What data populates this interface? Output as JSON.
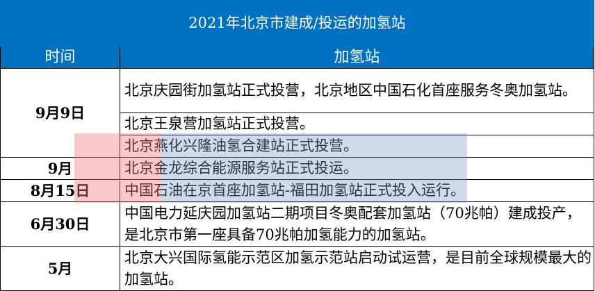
{
  "title": "2021年北京市建成/投运的加氢站",
  "headers": {
    "time": "时间",
    "station": "加氢站"
  },
  "rows": [
    {
      "time": "9月9日",
      "items": [
        "北京庆园街加氢站正式投营，北京地区中国石化首座服务冬奥加氢站。",
        "北京王泉营加氢站正式投营。",
        "北京燕化兴隆油氢合建站正式投营。"
      ]
    },
    {
      "time": "9月",
      "items": [
        "北京金龙综合能源服务站正式投运。"
      ]
    },
    {
      "time": "8月15日",
      "items": [
        "中国石油在京首座加氢站-福田加氢站正式投入运行。"
      ]
    },
    {
      "time": "6月30日",
      "items": [
        "中国电力延庆园加氢站二期项目冬奥配套加氢站（70兆帕）建成投产，是北京市第一座具备70兆帕加氢能力的加氢站。"
      ]
    },
    {
      "time": "5月",
      "items": [
        "北京大兴国际氢能示范区加氢示范站启动试运营，是目前全球规模最大的加氢站。"
      ]
    }
  ],
  "colors": {
    "header_bg": "#0070C0",
    "header_text": "#FFFFFF"
  }
}
